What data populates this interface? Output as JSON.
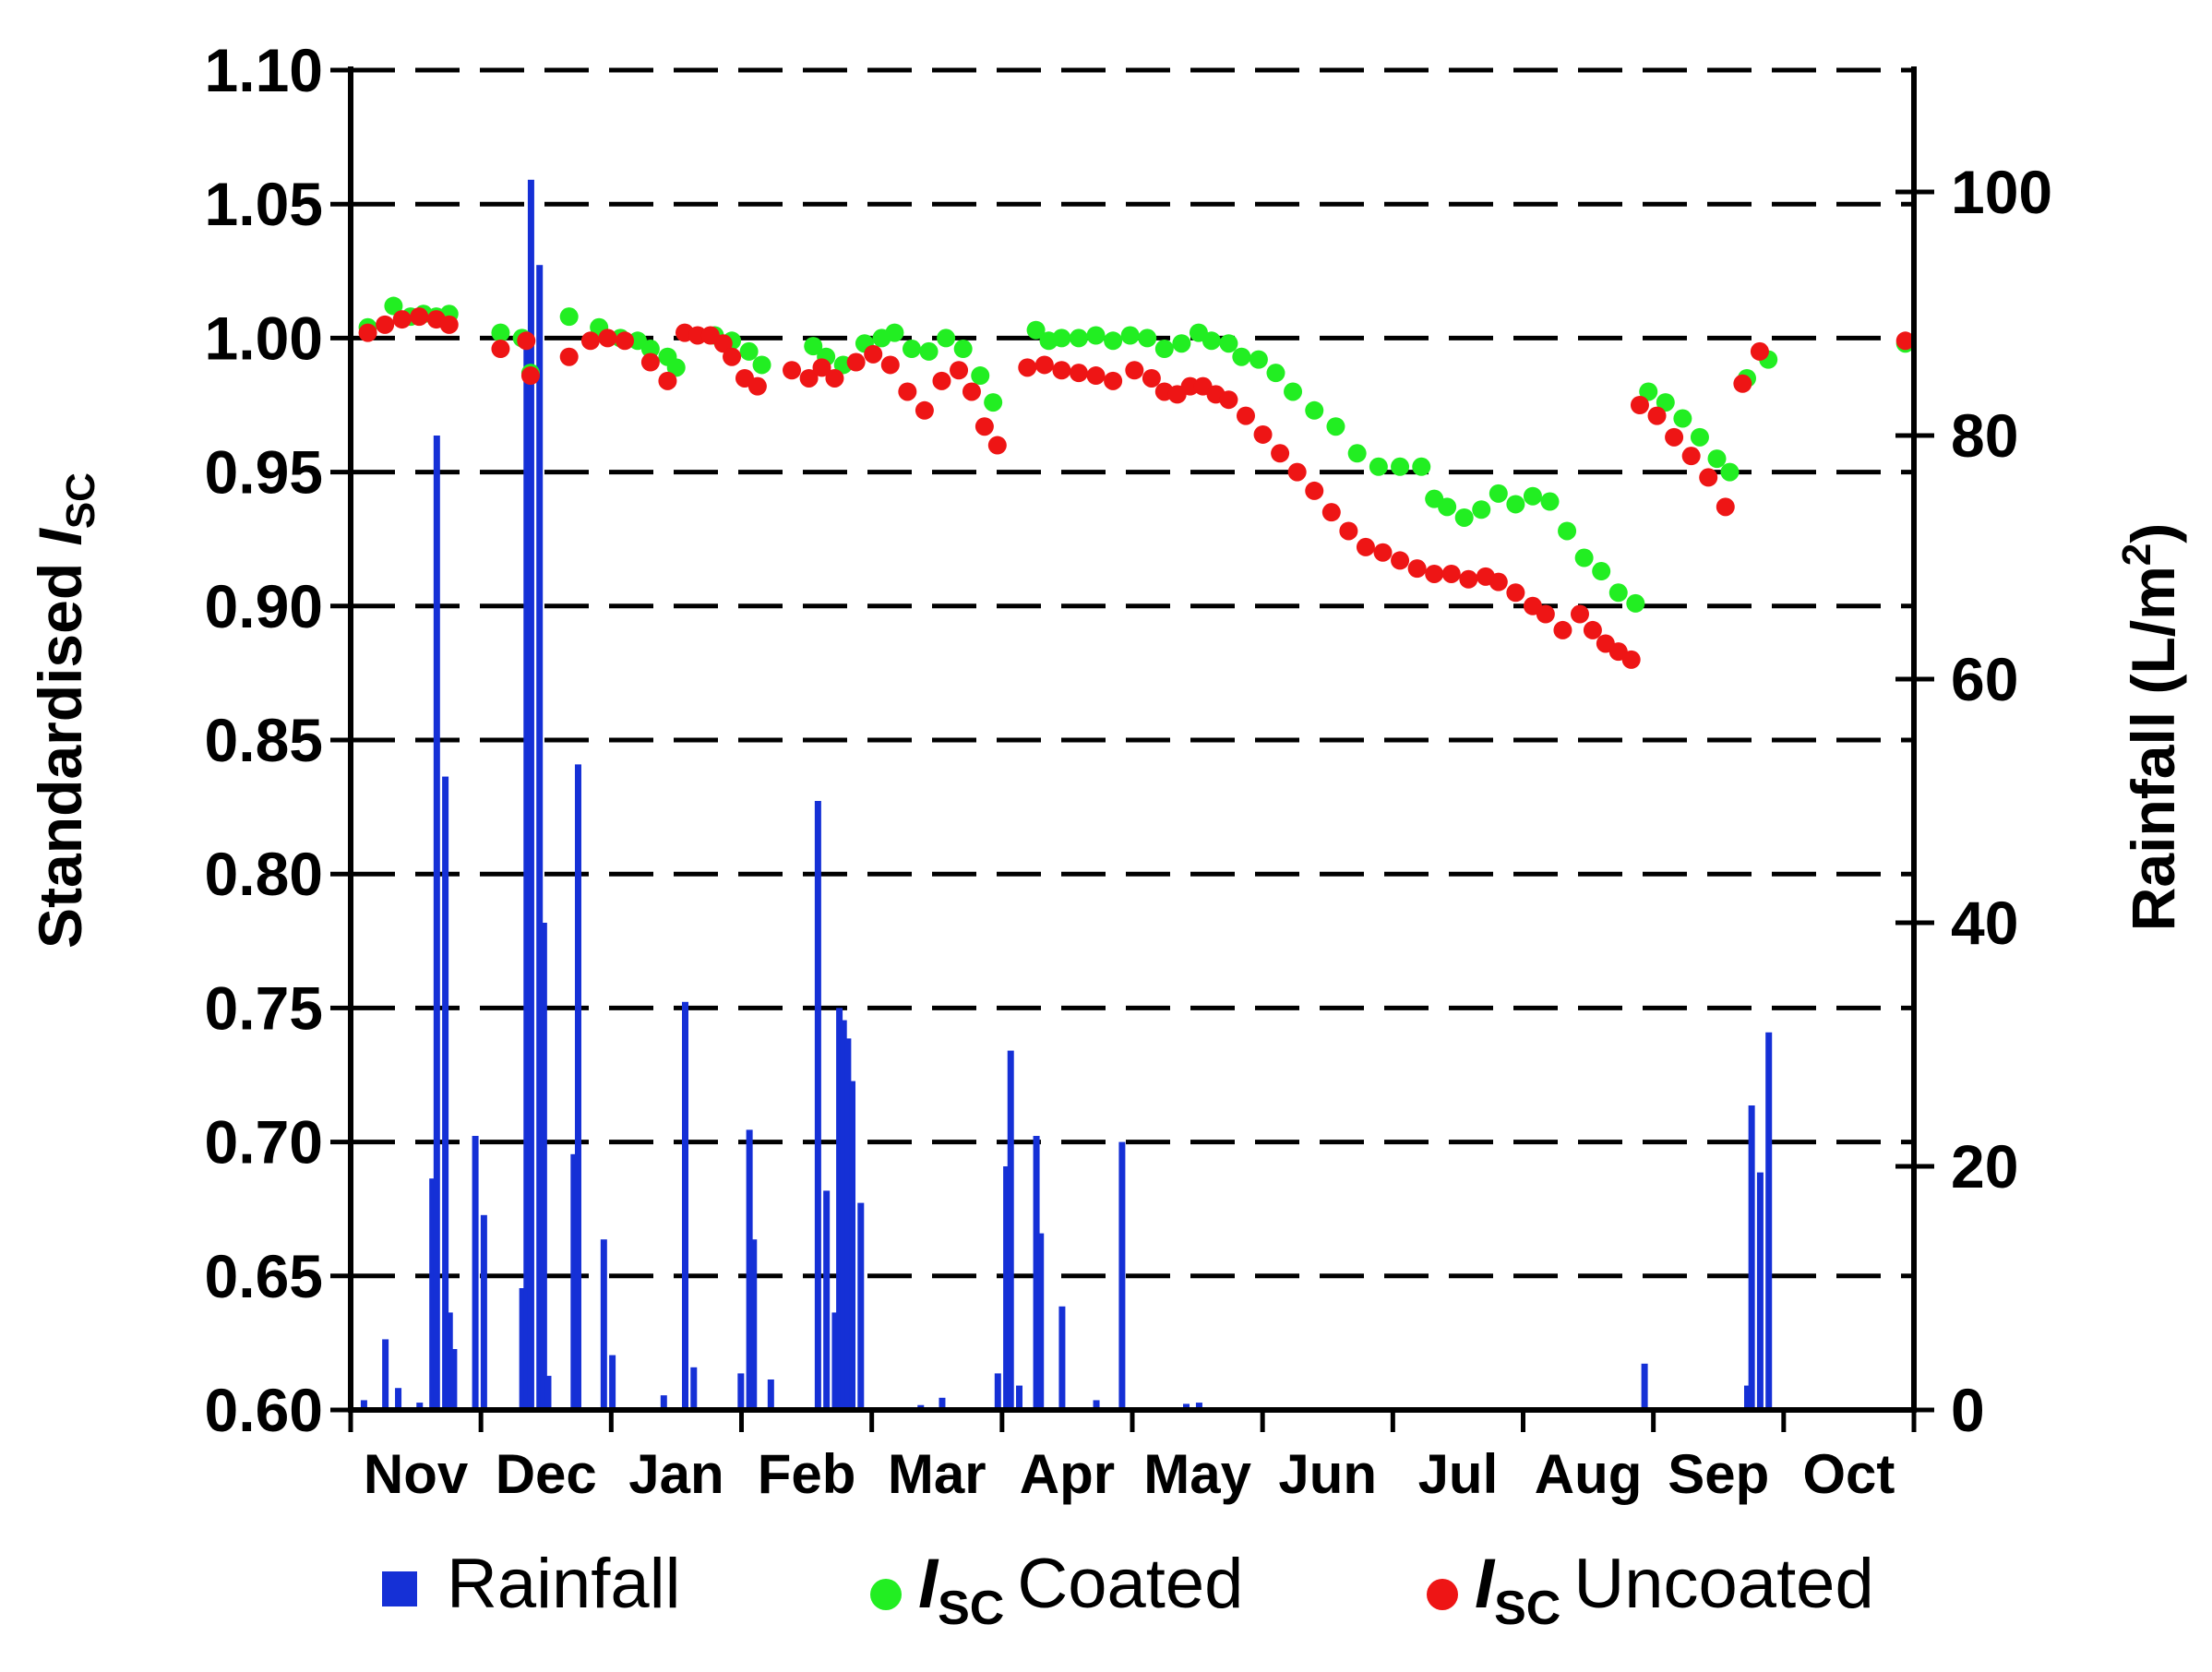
{
  "chart_data": {
    "type": "bar+scatter",
    "title": "",
    "xlabel": "",
    "ylabel_left": {
      "main": "Standardised",
      "symbol": "I",
      "subscript": "SC"
    },
    "ylabel_right": {
      "main": "Rainfall (L/m",
      "sup": "2",
      "close": ")"
    },
    "ylim_left": [
      0.6,
      1.1
    ],
    "ylim_right": [
      0,
      110
    ],
    "yticks_left": [
      "0.60",
      "0.65",
      "0.70",
      "0.75",
      "0.80",
      "0.85",
      "0.90",
      "0.95",
      "1.00",
      "1.05",
      "1.10"
    ],
    "yticks_right": [
      "0",
      "20",
      "40",
      "60",
      "80",
      "100"
    ],
    "grid": "dashed horizontal",
    "x_months": [
      "Nov",
      "Dec",
      "Jan",
      "Feb",
      "Mar",
      "Apr",
      "May",
      "Jun",
      "Jul",
      "Aug",
      "Sep",
      "Oct"
    ],
    "x_range_days": [
      0,
      365
    ],
    "colors": {
      "rainfall": "#1530d6",
      "coated": "#22ee22",
      "uncoated": "#ee1515"
    },
    "series": [
      {
        "name": "Rainfall",
        "kind": "bar",
        "axis": "right",
        "color": "#1530d6",
        "points": [
          [
            3,
            0.8
          ],
          [
            8,
            5.8
          ],
          [
            11,
            1.8
          ],
          [
            16,
            0.6
          ],
          [
            19,
            19
          ],
          [
            20,
            80
          ],
          [
            22,
            52
          ],
          [
            23,
            8
          ],
          [
            24,
            5
          ],
          [
            29,
            22.5
          ],
          [
            31,
            16
          ],
          [
            40,
            10
          ],
          [
            41,
            88
          ],
          [
            42,
            101
          ],
          [
            44,
            94
          ],
          [
            45,
            40
          ],
          [
            46,
            2.8
          ],
          [
            52,
            21
          ],
          [
            53,
            53
          ],
          [
            59,
            14
          ],
          [
            61,
            4.5
          ],
          [
            73,
            1.2
          ],
          [
            78,
            33.5
          ],
          [
            80,
            3.5
          ],
          [
            91,
            3
          ],
          [
            93,
            23
          ],
          [
            94,
            14
          ],
          [
            98,
            2.5
          ],
          [
            109,
            50
          ],
          [
            111,
            18
          ],
          [
            113,
            8
          ],
          [
            114,
            33
          ],
          [
            115,
            32
          ],
          [
            116,
            30.5
          ],
          [
            117,
            27
          ],
          [
            119,
            17
          ],
          [
            133,
            0.4
          ],
          [
            138,
            1
          ],
          [
            151,
            3
          ],
          [
            153,
            20
          ],
          [
            154,
            29.5
          ],
          [
            156,
            2
          ],
          [
            160,
            22.5
          ],
          [
            161,
            14.5
          ],
          [
            166,
            8.5
          ],
          [
            174,
            0.8
          ],
          [
            180,
            22
          ],
          [
            195,
            0.5
          ],
          [
            198,
            0.6
          ],
          [
            302,
            3.8
          ],
          [
            326,
            2
          ],
          [
            327,
            25
          ],
          [
            329,
            19.5
          ],
          [
            331,
            31
          ]
        ]
      },
      {
        "name": "Isc Coated",
        "kind": "scatter",
        "axis": "left",
        "color": "#22ee22",
        "points": [
          [
            4,
            1.004
          ],
          [
            10,
            1.012
          ],
          [
            14,
            1.008
          ],
          [
            17,
            1.009
          ],
          [
            20,
            1.008
          ],
          [
            23,
            1.009
          ],
          [
            35,
            1.002
          ],
          [
            40,
            1.0
          ],
          [
            42,
            0.987
          ],
          [
            51,
            1.008
          ],
          [
            58,
            1.004
          ],
          [
            63,
            1.0
          ],
          [
            67,
            0.999
          ],
          [
            70,
            0.996
          ],
          [
            74,
            0.993
          ],
          [
            76,
            0.989
          ],
          [
            85,
            1.001
          ],
          [
            89,
            0.999
          ],
          [
            93,
            0.995
          ],
          [
            96,
            0.99
          ],
          [
            108,
            0.997
          ],
          [
            111,
            0.993
          ],
          [
            115,
            0.99
          ],
          [
            120,
            0.998
          ],
          [
            124,
            1.0
          ],
          [
            127,
            1.002
          ],
          [
            131,
            0.996
          ],
          [
            135,
            0.995
          ],
          [
            139,
            1.0
          ],
          [
            143,
            0.996
          ],
          [
            147,
            0.986
          ],
          [
            150,
            0.976
          ],
          [
            160,
            1.003
          ],
          [
            163,
            0.999
          ],
          [
            166,
            1.0
          ],
          [
            170,
            1.0
          ],
          [
            174,
            1.001
          ],
          [
            178,
            0.999
          ],
          [
            182,
            1.001
          ],
          [
            186,
            1.0
          ],
          [
            190,
            0.996
          ],
          [
            194,
            0.998
          ],
          [
            198,
            1.002
          ],
          [
            201,
            0.999
          ],
          [
            205,
            0.998
          ],
          [
            208,
            0.993
          ],
          [
            212,
            0.992
          ],
          [
            216,
            0.987
          ],
          [
            220,
            0.98
          ],
          [
            225,
            0.973
          ],
          [
            230,
            0.967
          ],
          [
            235,
            0.957
          ],
          [
            240,
            0.952
          ],
          [
            245,
            0.952
          ],
          [
            250,
            0.952
          ],
          [
            253,
            0.94
          ],
          [
            256,
            0.937
          ],
          [
            260,
            0.933
          ],
          [
            264,
            0.936
          ],
          [
            268,
            0.942
          ],
          [
            272,
            0.938
          ],
          [
            276,
            0.941
          ],
          [
            280,
            0.939
          ],
          [
            284,
            0.928
          ],
          [
            288,
            0.918
          ],
          [
            292,
            0.913
          ],
          [
            296,
            0.905
          ],
          [
            300,
            0.901
          ],
          [
            303,
            0.98
          ],
          [
            307,
            0.976
          ],
          [
            311,
            0.97
          ],
          [
            315,
            0.963
          ],
          [
            319,
            0.955
          ],
          [
            322,
            0.95
          ],
          [
            326,
            0.985
          ],
          [
            331,
            0.992
          ],
          [
            363,
            0.998
          ]
        ]
      },
      {
        "name": "Isc Uncoated",
        "kind": "scatter",
        "axis": "left",
        "color": "#ee1515",
        "points": [
          [
            4,
            1.002
          ],
          [
            8,
            1.005
          ],
          [
            12,
            1.007
          ],
          [
            16,
            1.008
          ],
          [
            20,
            1.007
          ],
          [
            23,
            1.005
          ],
          [
            35,
            0.996
          ],
          [
            41,
            0.999
          ],
          [
            42,
            0.986
          ],
          [
            51,
            0.993
          ],
          [
            56,
            0.999
          ],
          [
            60,
            1.0
          ],
          [
            64,
            0.999
          ],
          [
            70,
            0.991
          ],
          [
            74,
            0.984
          ],
          [
            78,
            1.002
          ],
          [
            81,
            1.001
          ],
          [
            84,
            1.001
          ],
          [
            87,
            0.998
          ],
          [
            89,
            0.993
          ],
          [
            92,
            0.985
          ],
          [
            95,
            0.982
          ],
          [
            103,
            0.988
          ],
          [
            107,
            0.985
          ],
          [
            110,
            0.989
          ],
          [
            113,
            0.985
          ],
          [
            118,
            0.991
          ],
          [
            122,
            0.994
          ],
          [
            126,
            0.99
          ],
          [
            130,
            0.98
          ],
          [
            134,
            0.973
          ],
          [
            138,
            0.984
          ],
          [
            142,
            0.988
          ],
          [
            145,
            0.98
          ],
          [
            148,
            0.967
          ],
          [
            151,
            0.96
          ],
          [
            158,
            0.989
          ],
          [
            162,
            0.99
          ],
          [
            166,
            0.988
          ],
          [
            170,
            0.987
          ],
          [
            174,
            0.986
          ],
          [
            178,
            0.984
          ],
          [
            183,
            0.988
          ],
          [
            187,
            0.985
          ],
          [
            190,
            0.98
          ],
          [
            193,
            0.979
          ],
          [
            196,
            0.982
          ],
          [
            199,
            0.982
          ],
          [
            202,
            0.979
          ],
          [
            205,
            0.977
          ],
          [
            209,
            0.971
          ],
          [
            213,
            0.964
          ],
          [
            217,
            0.957
          ],
          [
            221,
            0.95
          ],
          [
            225,
            0.943
          ],
          [
            229,
            0.935
          ],
          [
            233,
            0.928
          ],
          [
            237,
            0.922
          ],
          [
            241,
            0.92
          ],
          [
            245,
            0.917
          ],
          [
            249,
            0.914
          ],
          [
            253,
            0.912
          ],
          [
            257,
            0.912
          ],
          [
            261,
            0.91
          ],
          [
            265,
            0.911
          ],
          [
            268,
            0.909
          ],
          [
            272,
            0.905
          ],
          [
            276,
            0.9
          ],
          [
            279,
            0.897
          ],
          [
            283,
            0.891
          ],
          [
            287,
            0.897
          ],
          [
            290,
            0.891
          ],
          [
            293,
            0.886
          ],
          [
            296,
            0.883
          ],
          [
            299,
            0.88
          ],
          [
            301,
            0.975
          ],
          [
            305,
            0.971
          ],
          [
            309,
            0.963
          ],
          [
            313,
            0.956
          ],
          [
            317,
            0.948
          ],
          [
            321,
            0.937
          ],
          [
            325,
            0.983
          ],
          [
            329,
            0.995
          ],
          [
            363,
            0.999
          ]
        ]
      }
    ],
    "legend": {
      "rainfall": "Rainfall",
      "coated_sym": "I",
      "coated_sub": "SC",
      "coated": "Coated",
      "uncoated_sym": "I",
      "uncoated_sub": "SC",
      "uncoated": "Uncoated"
    }
  }
}
